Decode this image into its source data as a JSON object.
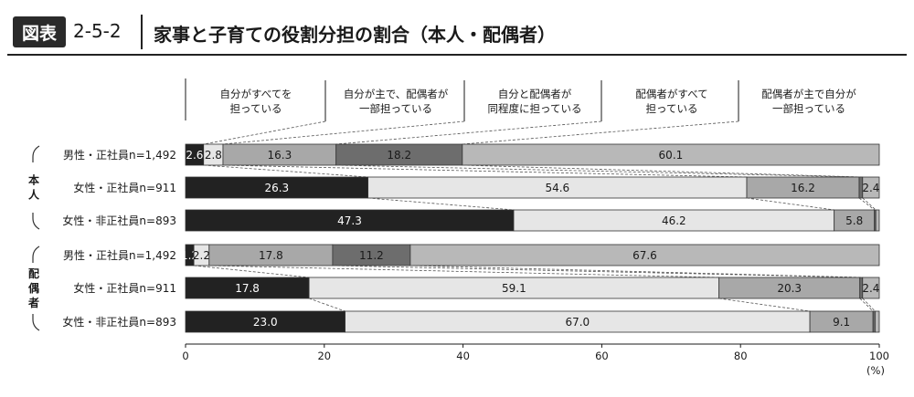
{
  "header": {
    "badge": "図表",
    "figure_number": "2-5-2",
    "title": "家事と子育ての役割分担の割合（本人・配偶者）"
  },
  "colors": {
    "self_all": "#222222",
    "self_main": "#e6e6e6",
    "equal": "#a8a8a8",
    "spouse_all": "#6d6d6d",
    "spouse_main": "#b8b8b8"
  },
  "chart_data": {
    "type": "bar",
    "orientation": "horizontal-stacked-100",
    "legend": [
      {
        "key": "self_all",
        "label_lines": [
          "自分がすべてを",
          "担っている"
        ]
      },
      {
        "key": "self_main",
        "label_lines": [
          "自分が主で、配偶者が",
          "一部担っている"
        ]
      },
      {
        "key": "equal",
        "label_lines": [
          "自分と配偶者が",
          "同程度に担っている"
        ]
      },
      {
        "key": "spouse_all",
        "label_lines": [
          "配偶者がすべて",
          "担っている"
        ]
      },
      {
        "key": "spouse_main",
        "label_lines": [
          "配偶者が主で自分が",
          "一部担っている"
        ]
      }
    ],
    "groups": [
      {
        "label": "本人",
        "rows": [
          {
            "label": "男性・正社員n=1,492",
            "values": [
              2.6,
              2.8,
              16.3,
              18.2,
              60.1
            ]
          },
          {
            "label": "女性・正社員n=911",
            "values": [
              26.3,
              54.6,
              16.2,
              0.5,
              2.4
            ]
          },
          {
            "label": "女性・非正社員n=893",
            "values": [
              47.3,
              46.2,
              5.8,
              0.2,
              0.5
            ]
          }
        ]
      },
      {
        "label": "配偶者",
        "rows": [
          {
            "label": "男性・正社員n=1,492",
            "values": [
              1.2,
              2.2,
              17.8,
              11.2,
              67.6
            ]
          },
          {
            "label": "女性・正社員n=911",
            "values": [
              17.8,
              59.1,
              20.3,
              0.4,
              2.4
            ]
          },
          {
            "label": "女性・非正社員n=893",
            "values": [
              23.0,
              67.0,
              9.1,
              0.3,
              0.6
            ]
          }
        ]
      }
    ],
    "data_labels": [
      [
        "2.6",
        "2.8",
        "16.3",
        "18.2",
        "60.1"
      ],
      [
        "26.3",
        "54.6",
        "16.2",
        "",
        "2.4"
      ],
      [
        "47.3",
        "46.2",
        "5.8",
        "",
        ""
      ],
      [
        "1.2",
        "2.2",
        "17.8",
        "11.2",
        "67.6"
      ],
      [
        "17.8",
        "59.1",
        "20.3",
        "",
        "2.4"
      ],
      [
        "23.0",
        "67.0",
        "9.1",
        "",
        ""
      ]
    ],
    "x_ticks": [
      "0",
      "20",
      "40",
      "60",
      "80",
      "100"
    ],
    "x_unit": "(%)",
    "xlim": [
      0,
      100
    ]
  }
}
